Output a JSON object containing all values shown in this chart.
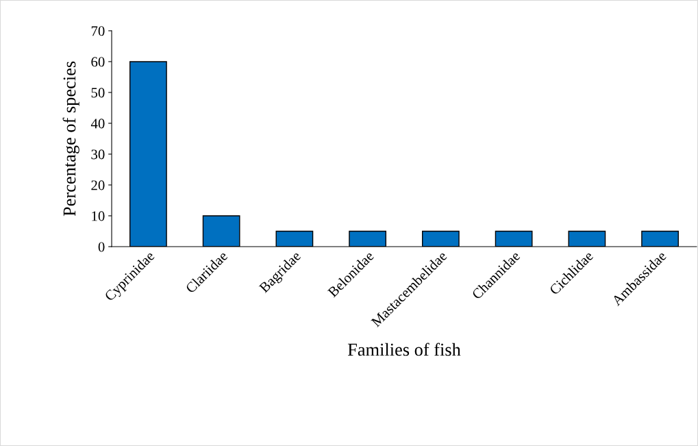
{
  "chart_data": {
    "type": "bar",
    "xlabel": "Families of fish",
    "ylabel": "Percentage of species",
    "categories": [
      "Cyprinidae",
      "Clariidae",
      "Bagridae",
      "Belonidae",
      "Mastacembelidae",
      "Channidae",
      "Cichlidae",
      "Ambassidae"
    ],
    "values": [
      60,
      10,
      5,
      5,
      5,
      5,
      5,
      5
    ],
    "color": "#0070c0",
    "ylim": [
      0,
      70
    ],
    "yticks": [
      0,
      10,
      20,
      30,
      40,
      50,
      60,
      70
    ],
    "grid": false
  }
}
